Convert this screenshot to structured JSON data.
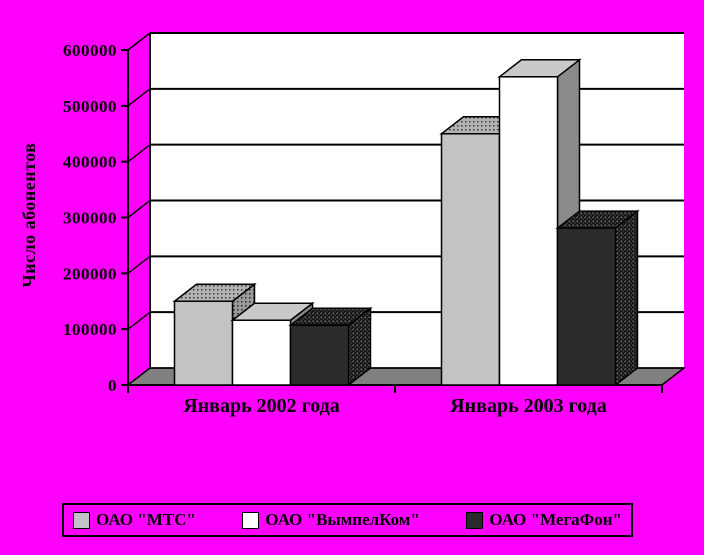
{
  "colors": {
    "background": "#ff00ff",
    "wall": "#ffffff",
    "floor": "#808080",
    "gridline": "#000000",
    "text": "#000000"
  },
  "chart_data": {
    "type": "bar",
    "projection": "3d",
    "title": "",
    "xlabel": "",
    "ylabel": "Число абонентов",
    "categories": [
      "Январь 2002 года",
      "Январь 2003 года"
    ],
    "category_keys": [
      "jan-2002",
      "jan-2003"
    ],
    "series": [
      {
        "key": "mts",
        "name": "ОАО \"МТС\"",
        "values": [
          150000,
          450000
        ],
        "color": "#c3c3c3",
        "top_fill": "pattern:dotsLight",
        "side_fill": "pattern:dotsLightSide"
      },
      {
        "key": "vympelkom",
        "name": "ОАО \"ВымпелКом\"",
        "values": [
          116000,
          552000
        ],
        "color": "#ffffff",
        "top_fill": "#c9c9c9",
        "side_fill": "#8a8a8a"
      },
      {
        "key": "megafon",
        "name": "ОАО \"МегаФон\"",
        "values": [
          107000,
          281000
        ],
        "color": "#2b2b2b",
        "top_fill": "pattern:dotsDark",
        "side_fill": "pattern:dotsDark"
      }
    ],
    "ylim": [
      0,
      600000
    ],
    "ytick_step": 100000,
    "ytick_labels": [
      "0",
      "100000",
      "200000",
      "300000",
      "400000",
      "500000",
      "600000"
    ],
    "grid": true,
    "legend_position": "bottom"
  }
}
